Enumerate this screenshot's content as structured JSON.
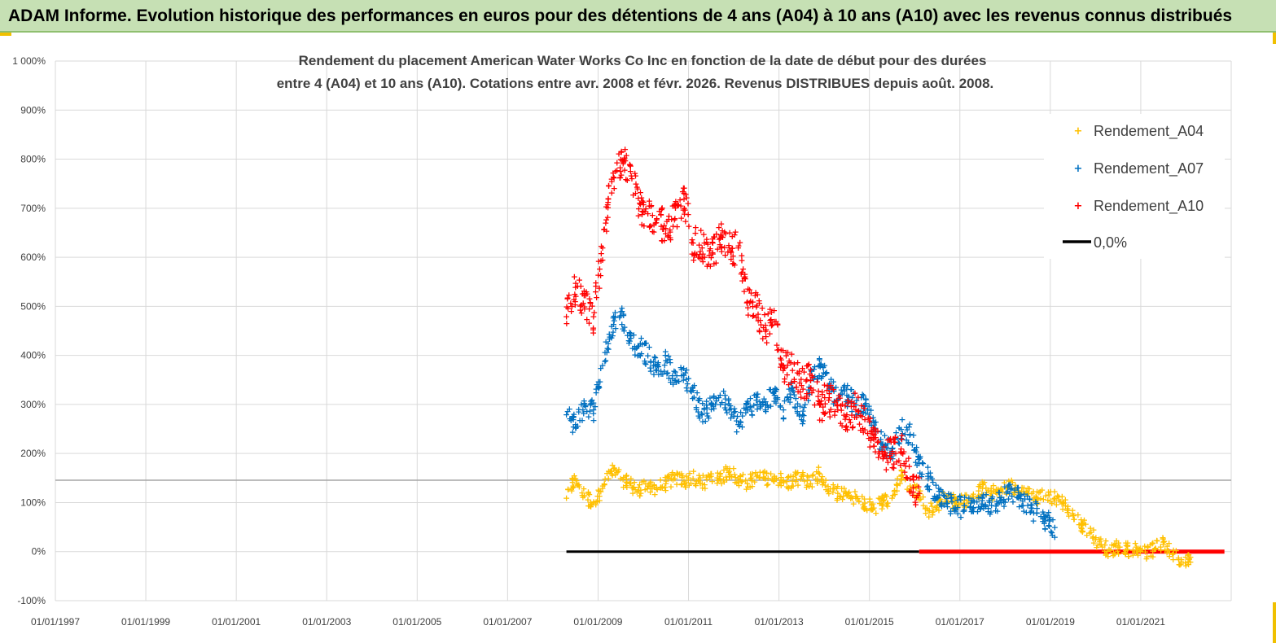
{
  "header": {
    "title": "ADAM Informe. Evolution historique des performances en euros pour des détentions de 4 ans (A04) à 10 ans (A10) avec les revenus connus distribués"
  },
  "chart_data": {
    "type": "scatter",
    "title_line1": "Rendement du placement American Water Works Co Inc en fonction de la date de début pour des durées",
    "title_line2": "entre 4 (A04) et 10 ans (A10). Cotations entre avr. 2008 et févr. 2026. Revenus DISTRIBUES depuis août. 2008.",
    "xlabel": "",
    "ylabel": "",
    "xlim": [
      1997.0,
      2023.0
    ],
    "ylim": [
      -100,
      1000
    ],
    "x_tick_labels": [
      "01/01/1997",
      "01/01/1999",
      "01/01/2001",
      "01/01/2003",
      "01/01/2005",
      "01/01/2007",
      "01/01/2009",
      "01/01/2011",
      "01/01/2013",
      "01/01/2015",
      "01/01/2017",
      "01/01/2019",
      "01/01/2021"
    ],
    "x_tick_values": [
      1997,
      1999,
      2001,
      2003,
      2005,
      2007,
      2009,
      2011,
      2013,
      2015,
      2017,
      2019,
      2021
    ],
    "y_tick_labels": [
      "-100%",
      "0%",
      "100%",
      "200%",
      "300%",
      "400%",
      "500%",
      "600%",
      "700%",
      "800%",
      "900%",
      "1 000%"
    ],
    "y_tick_values": [
      -100,
      0,
      100,
      200,
      300,
      400,
      500,
      600,
      700,
      800,
      900,
      1000
    ],
    "legend_position": "top-right",
    "series": [
      {
        "name": "Rendement_A04",
        "color": "#ffc000",
        "x": [
          2008.3,
          2008.5,
          2008.7,
          2008.9,
          2009.1,
          2009.3,
          2009.5,
          2009.7,
          2009.9,
          2010.1,
          2010.3,
          2010.5,
          2010.7,
          2010.9,
          2011.1,
          2011.3,
          2011.5,
          2011.7,
          2011.9,
          2012.1,
          2012.3,
          2012.5,
          2012.7,
          2012.9,
          2013.1,
          2013.3,
          2013.5,
          2013.7,
          2013.9,
          2014.1,
          2014.3,
          2014.5,
          2014.7,
          2014.9,
          2015.1,
          2015.3,
          2015.5,
          2015.7,
          2015.9,
          2016.1,
          2016.3,
          2016.5,
          2016.7,
          2016.9,
          2017.1,
          2017.3,
          2017.5,
          2017.7,
          2017.9,
          2018.1,
          2018.3,
          2018.5,
          2018.7,
          2018.9,
          2019.1,
          2019.3,
          2019.5,
          2019.7,
          2019.9,
          2020.1,
          2020.3,
          2020.5,
          2020.7,
          2020.9,
          2021.1,
          2021.3,
          2021.5,
          2021.7,
          2021.9,
          2022.1
        ],
        "y": [
          110,
          150,
          115,
          100,
          130,
          165,
          150,
          140,
          125,
          135,
          130,
          140,
          150,
          145,
          150,
          140,
          155,
          150,
          165,
          150,
          140,
          155,
          150,
          155,
          145,
          145,
          155,
          140,
          160,
          125,
          120,
          115,
          110,
          100,
          90,
          105,
          110,
          155,
          135,
          120,
          85,
          95,
          115,
          100,
          105,
          110,
          130,
          120,
          125,
          135,
          125,
          120,
          110,
          115,
          110,
          100,
          75,
          55,
          40,
          15,
          5,
          10,
          5,
          10,
          0,
          5,
          20,
          -5,
          -15,
          -10
        ]
      },
      {
        "name": "Rendement_A07",
        "color": "#0070c0",
        "x": [
          2008.3,
          2008.5,
          2008.7,
          2008.9,
          2009.1,
          2009.3,
          2009.5,
          2009.7,
          2009.9,
          2010.1,
          2010.3,
          2010.5,
          2010.7,
          2010.9,
          2011.1,
          2011.3,
          2011.5,
          2011.7,
          2011.9,
          2012.1,
          2012.3,
          2012.5,
          2012.7,
          2012.9,
          2013.1,
          2013.3,
          2013.5,
          2013.7,
          2013.9,
          2014.1,
          2014.3,
          2014.5,
          2014.7,
          2014.9,
          2015.1,
          2015.3,
          2015.5,
          2015.7,
          2015.9,
          2016.1,
          2016.3,
          2016.5,
          2016.7,
          2016.9,
          2017.1,
          2017.3,
          2017.5,
          2017.7,
          2017.9,
          2018.1,
          2018.3,
          2018.5,
          2018.7,
          2018.9,
          2019.1
        ],
        "y": [
          280,
          260,
          300,
          290,
          380,
          460,
          490,
          430,
          420,
          400,
          370,
          390,
          350,
          360,
          330,
          280,
          300,
          320,
          290,
          260,
          290,
          310,
          300,
          320,
          290,
          330,
          270,
          350,
          380,
          340,
          310,
          320,
          300,
          300,
          250,
          220,
          210,
          250,
          240,
          180,
          150,
          110,
          100,
          90,
          95,
          90,
          110,
          95,
          105,
          120,
          110,
          95,
          80,
          65,
          50
        ]
      },
      {
        "name": "Rendement_A10",
        "color": "#ff0000",
        "x": [
          2008.3,
          2008.5,
          2008.7,
          2008.9,
          2009.1,
          2009.3,
          2009.5,
          2009.7,
          2009.9,
          2010.1,
          2010.3,
          2010.5,
          2010.7,
          2010.9,
          2011.1,
          2011.3,
          2011.5,
          2011.7,
          2011.9,
          2012.1,
          2012.3,
          2012.5,
          2012.7,
          2012.9,
          2013.1,
          2013.3,
          2013.5,
          2013.7,
          2013.9,
          2014.1,
          2014.3,
          2014.5,
          2014.7,
          2014.9,
          2015.1,
          2015.3,
          2015.5,
          2015.7,
          2015.9,
          2016.1
        ],
        "y": [
          480,
          540,
          500,
          480,
          620,
          760,
          800,
          790,
          700,
          690,
          680,
          660,
          680,
          720,
          630,
          620,
          600,
          640,
          620,
          620,
          510,
          500,
          450,
          470,
          380,
          370,
          340,
          350,
          300,
          310,
          290,
          280,
          290,
          270,
          230,
          190,
          200,
          210,
          150,
          120
        ]
      },
      {
        "name": "0,0%",
        "color": "#000000",
        "x": [
          2008.3,
          2016.1
        ],
        "y": [
          0,
          0
        ]
      },
      {
        "name": "zero_red_line",
        "color": "#ff0000",
        "x": [
          2016.1,
          2022.85
        ],
        "y": [
          0,
          0
        ]
      }
    ],
    "legend": [
      "Rendement_A04",
      "Rendement_A07",
      "Rendement_A10",
      "0,0%"
    ]
  }
}
